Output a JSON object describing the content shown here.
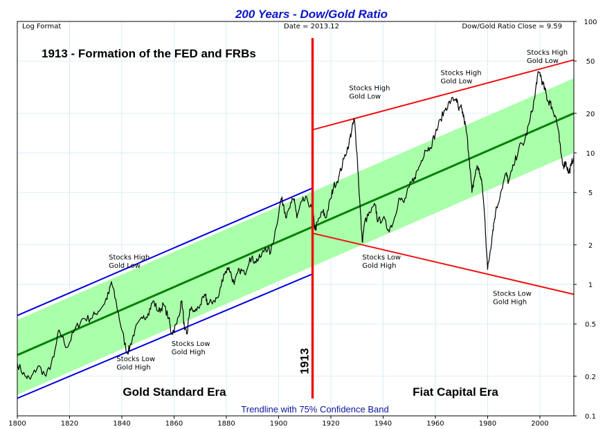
{
  "chart_data": {
    "type": "line",
    "title": "200 Years - Dow/Gold Ratio",
    "subtitle": "Trendline with 75% Confidence Band",
    "corner_labels": {
      "left": "Log Format",
      "center": "Date = 2013.12",
      "right": "Dow/Gold Ratio Close = 9.59"
    },
    "headline": "1913 - Formation of the FED and FRBs",
    "eras": [
      "Gold Standard Era",
      "Fiat Capital Era"
    ],
    "marker": {
      "year": 1913,
      "label": "1913"
    },
    "x_axis": {
      "range": [
        1800,
        2013
      ],
      "ticks": [
        1800,
        1820,
        1840,
        1860,
        1880,
        1900,
        1920,
        1940,
        1960,
        1980,
        2000
      ]
    },
    "y_axis": {
      "scale": "log",
      "range": [
        0.1,
        100
      ],
      "position": "right",
      "ticks": [
        0.1,
        0.2,
        0.5,
        1,
        2,
        5,
        10,
        20,
        50,
        100
      ],
      "tick_labels": [
        "0.1",
        "0.2",
        "0.5",
        "1",
        "2",
        "5",
        "10",
        "20",
        "50",
        "100"
      ]
    },
    "series": [
      {
        "x": [
          1800,
          1803,
          1805,
          1808,
          1811,
          1814,
          1816,
          1819,
          1822,
          1825,
          1828,
          1830,
          1833,
          1835,
          1836,
          1838,
          1840,
          1842,
          1843,
          1845,
          1848,
          1850,
          1852,
          1854,
          1856,
          1858,
          1859,
          1861,
          1863,
          1864,
          1865,
          1866,
          1868,
          1870,
          1872,
          1873,
          1875,
          1877,
          1879,
          1881,
          1883,
          1885,
          1887,
          1889,
          1891,
          1893,
          1895,
          1897,
          1899,
          1901,
          1902,
          1903,
          1905,
          1906,
          1907,
          1909,
          1911,
          1913,
          1914,
          1915,
          1917,
          1918,
          1920,
          1921,
          1923,
          1925,
          1927,
          1928,
          1929,
          1930,
          1931,
          1932,
          1933,
          1935,
          1937,
          1938,
          1940,
          1942,
          1944,
          1946,
          1948,
          1950,
          1952,
          1954,
          1956,
          1958,
          1960,
          1962,
          1964,
          1966,
          1968,
          1969,
          1970,
          1971,
          1972,
          1973,
          1974,
          1975,
          1976,
          1977,
          1978,
          1979,
          1980,
          1981,
          1982,
          1983,
          1985,
          1987,
          1988,
          1990,
          1992,
          1994,
          1996,
          1998,
          1999,
          2000,
          2001,
          2002,
          2003,
          2004,
          2005,
          2006,
          2007,
          2008,
          2009,
          2010,
          2011,
          2012,
          2013
        ],
        "values": [
          0.25,
          0.2,
          0.19,
          0.24,
          0.2,
          0.28,
          0.45,
          0.33,
          0.45,
          0.55,
          0.55,
          0.6,
          0.7,
          0.85,
          1.05,
          0.7,
          0.45,
          0.3,
          0.33,
          0.45,
          0.55,
          0.6,
          0.75,
          0.62,
          0.7,
          0.55,
          0.42,
          0.5,
          0.75,
          0.45,
          0.42,
          0.65,
          0.62,
          0.7,
          0.82,
          0.7,
          0.75,
          0.8,
          1.2,
          1.35,
          1.0,
          1.3,
          1.2,
          1.6,
          1.5,
          1.6,
          1.9,
          1.75,
          2.7,
          4.5,
          4.0,
          3.2,
          4.2,
          4.5,
          3.2,
          4.3,
          4.4,
          3.6,
          2.6,
          3.0,
          3.6,
          3.2,
          4.5,
          5.5,
          6.5,
          9.0,
          12.0,
          15.0,
          18.0,
          10.0,
          4.5,
          2.1,
          3.0,
          3.5,
          4.0,
          3.0,
          3.2,
          2.6,
          3.0,
          4.5,
          4.2,
          5.5,
          6.5,
          8.0,
          10.5,
          11.0,
          14.0,
          18.0,
          22.0,
          25.0,
          26.0,
          21.0,
          22.0,
          18.0,
          14.0,
          9.0,
          5.0,
          6.5,
          8.0,
          7.0,
          5.5,
          3.0,
          1.3,
          1.8,
          2.6,
          3.5,
          5.0,
          7.0,
          6.0,
          8.0,
          11.0,
          12.0,
          17.0,
          26.0,
          38.0,
          41.0,
          34.0,
          30.0,
          25.0,
          24.0,
          21.0,
          19.0,
          15.0,
          10.0,
          8.0,
          8.5,
          7.0,
          8.0,
          9.59
        ]
      }
    ],
    "trend": {
      "start": {
        "x": 1800,
        "y": 0.29
      },
      "end": {
        "x": 2013,
        "y": 20.0
      }
    },
    "confidence_band": {
      "lower_factor": 0.5,
      "upper_factor": 1.85
    },
    "channel_gold_era": {
      "upper": {
        "start": {
          "x": 1800,
          "y": 0.58
        },
        "end": {
          "x": 1913,
          "y": 5.4
        }
      },
      "lower": {
        "start": {
          "x": 1800,
          "y": 0.136
        },
        "end": {
          "x": 1913,
          "y": 1.2
        }
      }
    },
    "channel_fiat_era": {
      "upper": {
        "start": {
          "x": 1913,
          "y": 15.0
        },
        "end": {
          "x": 2013,
          "y": 51.0
        }
      },
      "lower": {
        "start": {
          "x": 1913,
          "y": 2.45
        },
        "end": {
          "x": 2013,
          "y": 0.84
        }
      }
    },
    "annotations": [
      {
        "line1": "Stocks High",
        "line2": "Gold Low",
        "x": 1835,
        "y": 1.55
      },
      {
        "line1": "Stocks Low",
        "line2": "Gold High",
        "x": 1838,
        "y": 0.26
      },
      {
        "line1": "Stocks Low",
        "line2": "Gold High",
        "x": 1859,
        "y": 0.34
      },
      {
        "line1": "Stocks High",
        "line2": "Gold Low",
        "x": 1927,
        "y": 30.0
      },
      {
        "line1": "Stocks Low",
        "line2": "Gold High",
        "x": 1932,
        "y": 1.55
      },
      {
        "line1": "Stocks High",
        "line2": "Gold Low",
        "x": 1962,
        "y": 39.0
      },
      {
        "line1": "Stocks Low",
        "line2": "Gold High",
        "x": 1982,
        "y": 0.82
      },
      {
        "line1": "Stocks High",
        "line2": "Gold Low",
        "x": 1995,
        "y": 56.0
      }
    ],
    "grid": true,
    "colors": {
      "title": "#0a14c8",
      "caption": "#0a14a0",
      "line": "#000000",
      "trend": "#008000",
      "band": "#aaffaa",
      "gold_channel": "#0000dd",
      "fiat_channel": "#ee1111",
      "marker": "#ee1111",
      "grid": "#c8e6f0"
    }
  }
}
